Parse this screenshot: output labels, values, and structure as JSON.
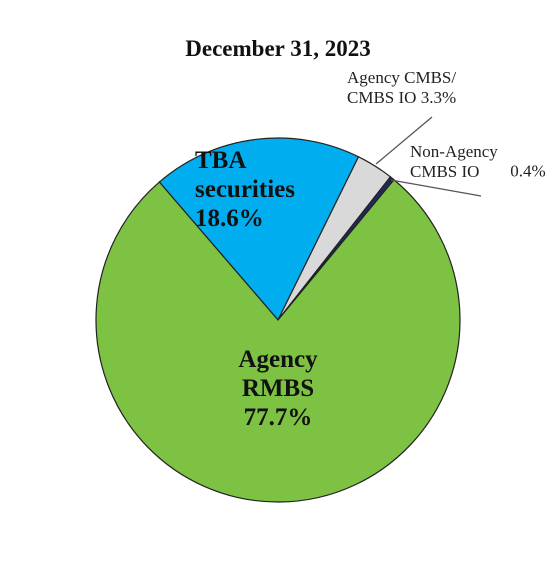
{
  "chart_data": {
    "type": "pie",
    "title": "December 31, 2023",
    "categories": [
      "TBA securities",
      "Agency CMBS/ CMBS IO",
      "Non-Agency CMBS IO",
      "Agency RMBS"
    ],
    "values": [
      18.6,
      3.3,
      0.4,
      77.7
    ],
    "value_labels": [
      "18.6%",
      "3.3%",
      "0.4%",
      "77.7%"
    ],
    "colors": [
      "#00aeef",
      "#d9d9d9",
      "#1f2a5a",
      "#7dc242"
    ]
  }
}
